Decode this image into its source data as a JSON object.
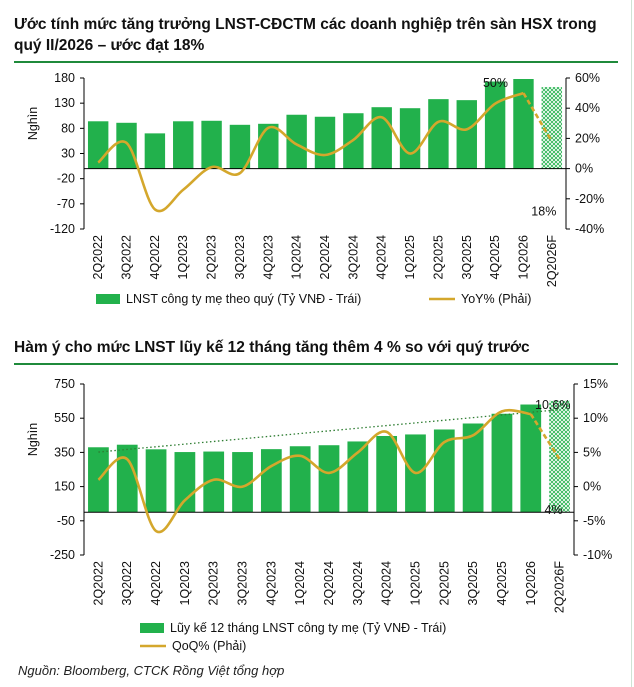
{
  "source": "Nguồn: Bloomberg, CTCK Rồng Việt tổng hợp",
  "colors": {
    "bar": "#22b14c",
    "line": "#d4a72c",
    "rule": "#1f8a3b"
  },
  "chart_data": [
    {
      "type": "bar",
      "title": "Ước tính mức tăng trưởng LNST-CĐCTM các doanh nghiệp trên sàn HSX trong quý II/2026 – ước đạt 18%",
      "ylabel": "Nghìn",
      "categories": [
        "2Q2022",
        "3Q2022",
        "4Q2022",
        "1Q2023",
        "2Q2023",
        "3Q2023",
        "4Q2023",
        "1Q2024",
        "2Q2024",
        "3Q2024",
        "4Q2024",
        "1Q2025",
        "2Q2025",
        "3Q2025",
        "4Q2025",
        "1Q2026",
        "2Q2026F"
      ],
      "ylim": [
        -120,
        180
      ],
      "yticks": [
        180,
        130,
        80,
        30,
        -20,
        -70,
        -120
      ],
      "ytick_labels": [
        "180",
        "130",
        "80",
        "30",
        "-20",
        "-70",
        "-120"
      ],
      "y2lim": [
        -40,
        60
      ],
      "y2ticks": [
        60,
        40,
        20,
        0,
        -20,
        -40
      ],
      "y2tick_labels": [
        "60%",
        "40%",
        "20%",
        "0%",
        "-20%",
        "-40%"
      ],
      "series": [
        {
          "name": "LNST công ty mẹ theo quý (Tỷ VNĐ - Trái)",
          "kind": "bar",
          "axis": "left",
          "values": [
            94,
            91,
            70,
            94,
            95,
            87,
            89,
            107,
            103,
            110,
            122,
            120,
            138,
            136,
            173,
            178,
            162
          ]
        },
        {
          "name": "YoY% (Phải)",
          "kind": "line",
          "axis": "right",
          "values": [
            4,
            17,
            -27,
            -14,
            1,
            -3,
            27,
            16,
            9,
            19,
            34,
            10,
            31,
            26,
            43,
            50,
            18
          ]
        }
      ],
      "forecast_index": 16,
      "annotations": [
        {
          "text": "50%",
          "index": 15,
          "series": 1
        },
        {
          "text": "18%",
          "index": 16,
          "series": 1
        }
      ],
      "grid": false,
      "legend": "bottom"
    },
    {
      "type": "bar",
      "title": "Hàm ý cho mức LNST lũy kế 12 tháng tăng thêm 4 % so với quý trước",
      "ylabel": "Nghìn",
      "categories": [
        "2Q2022",
        "3Q2022",
        "4Q2022",
        "1Q2023",
        "2Q2023",
        "3Q2023",
        "4Q2023",
        "1Q2024",
        "2Q2024",
        "3Q2024",
        "4Q2024",
        "1Q2025",
        "2Q2025",
        "3Q2025",
        "4Q2025",
        "1Q2026",
        "2Q2026F"
      ],
      "ylim": [
        -250,
        750
      ],
      "yticks": [
        750,
        550,
        350,
        150,
        -50,
        -250
      ],
      "ytick_labels": [
        "750",
        "550",
        "350",
        "150",
        "-50",
        "-250"
      ],
      "y2lim": [
        -10,
        15
      ],
      "y2ticks": [
        15,
        10,
        5,
        0,
        -5,
        -10
      ],
      "y2tick_labels": [
        "15%",
        "10%",
        "5%",
        "0%",
        "-5%",
        "-10%"
      ],
      "series": [
        {
          "name": "Lũy kế 12 tháng LNST công ty mẹ (Tỷ VNĐ - Trái)",
          "kind": "bar",
          "axis": "left",
          "values": [
            380,
            395,
            368,
            352,
            355,
            352,
            369,
            386,
            392,
            414,
            446,
            455,
            484,
            519,
            576,
            630,
            652
          ]
        },
        {
          "name": "QoQ% (Phải)",
          "kind": "line",
          "axis": "right",
          "values": [
            1,
            4,
            -6.5,
            -2,
            1,
            0,
            3,
            4.5,
            2,
            5,
            8,
            2,
            6.5,
            7.5,
            11,
            10.6,
            4
          ]
        }
      ],
      "trendline": {
        "kind": "dotted",
        "from": [
          0,
          352
        ],
        "to": [
          16,
          600
        ]
      },
      "forecast_index": 16,
      "annotations": [
        {
          "text": "10,6%",
          "index": 15,
          "series": 1
        },
        {
          "text": "4%",
          "index": 16,
          "series": 1
        }
      ],
      "grid": false,
      "legend": "bottom"
    }
  ]
}
